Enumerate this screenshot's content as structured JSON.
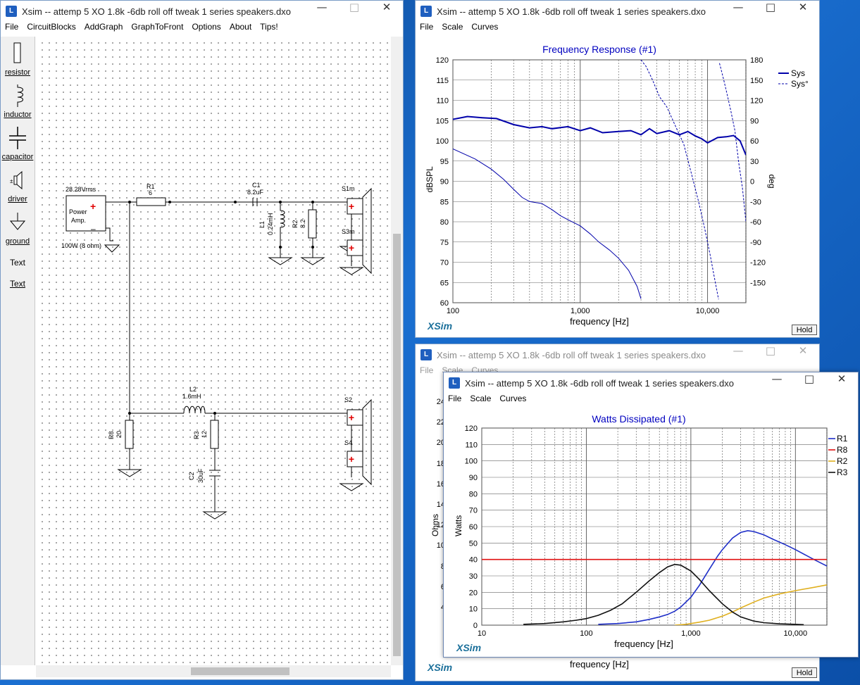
{
  "colors": {
    "accent": "#0000c0",
    "sys": "#0000aa",
    "r1": "#1f2fc8",
    "r8": "#e01010",
    "r2": "#e0b020",
    "r3": "#111111",
    "brand": "#1a6f9a"
  },
  "win1": {
    "title": "Xsim -- attemp 5 XO 1.8k -6db roll off tweak 1 series speakers.dxo",
    "menu": [
      "File",
      "CircuitBlocks",
      "AddGraph",
      "GraphToFront",
      "Options",
      "About",
      "Tips!"
    ],
    "tools": [
      {
        "label": "resistor",
        "icon": "resistor-icon"
      },
      {
        "label": "inductor",
        "icon": "inductor-icon"
      },
      {
        "label": "capacitor",
        "icon": "capacitor-icon"
      },
      {
        "label": "driver",
        "icon": "speaker-icon"
      },
      {
        "label": "ground",
        "icon": "ground-icon"
      },
      {
        "label": "Text",
        "icon": "text-icon"
      },
      {
        "label": "Text",
        "icon": "text-link"
      }
    ],
    "circuit": {
      "source_voltage": "28.28Vrms",
      "source_name1": "Power",
      "source_name2": "Amp.",
      "source_rating": "100W (8 ohm)",
      "r1_name": "R1",
      "r1_value": "6",
      "c1_name": "C1",
      "c1_value": "8.2uF",
      "l1_name": "L1",
      "l1_value": "0.24mH",
      "r2_name": "R2",
      "r2_value": "8.2",
      "s1": "S1m",
      "s3": "S3m",
      "l2_name": "L2",
      "l2_value": "1.6mH",
      "r8_name": "R8",
      "r8_value": "20",
      "r3_name": "R3",
      "r3_value": "12",
      "c2_name": "C2",
      "c2_value": "30uF",
      "s2": "S2",
      "s4": "S4"
    }
  },
  "win2": {
    "title": "Xsim -- attemp 5 XO 1.8k -6db roll off tweak 1 series speakers.dxo",
    "menu": [
      "File",
      "Scale",
      "Curves"
    ],
    "brand": "XSim",
    "hold": "Hold"
  },
  "win3": {
    "title": "Xsim -- attemp 5 XO 1.8k -6db roll off tweak 1 series speakers.dxo",
    "menu": [
      "File",
      "Scale",
      "Curves"
    ],
    "brand": "XSim",
    "hold": "Hold",
    "xlabel": "frequency [Hz]",
    "ylabel": "Ohms",
    "yticks": [
      "24",
      "22",
      "20",
      "18",
      "16",
      "14",
      "12",
      "10",
      "8",
      "6",
      "4"
    ]
  },
  "win4": {
    "title": "Xsim -- attemp 5 XO 1.8k -6db roll off tweak 1 series speakers.dxo",
    "menu": [
      "File",
      "Scale",
      "Curves"
    ],
    "brand": "XSim"
  },
  "chart_data": [
    {
      "type": "line",
      "title": "Frequency Response (#1)",
      "xlabel": "frequency [Hz]",
      "ylabel": "dBSPL",
      "y2label": "deg",
      "xscale": "log",
      "xlim": [
        100,
        20000
      ],
      "ylim": [
        60,
        120
      ],
      "y2lim": [
        -180,
        180
      ],
      "xticks": [
        "100",
        "1,000",
        "10,000"
      ],
      "yticks": [
        "120",
        "115",
        "110",
        "105",
        "100",
        "95",
        "90",
        "85",
        "80",
        "75",
        "70",
        "65",
        "60"
      ],
      "y2ticks": [
        "180",
        "150",
        "120",
        "90",
        "60",
        "30",
        "0",
        "-30",
        "-60",
        "-90",
        "-120",
        "-150"
      ],
      "grid": true,
      "legend": "top-right",
      "series": [
        {
          "name": "Sys",
          "axis": "left",
          "style": "solid",
          "x": [
            100,
            130,
            170,
            220,
            300,
            400,
            500,
            600,
            800,
            1000,
            1200,
            1500,
            2000,
            2500,
            3000,
            3500,
            4000,
            5000,
            6000,
            7000,
            8000,
            9000,
            10000,
            12000,
            14000,
            16000,
            18000,
            20000
          ],
          "y": [
            105.3,
            106,
            105.7,
            105.5,
            104,
            103.2,
            103.5,
            103,
            103.5,
            102.5,
            103.2,
            102,
            102.3,
            102.5,
            101.5,
            103,
            101.8,
            102.5,
            101.5,
            102.3,
            101.2,
            100.5,
            99.5,
            100.8,
            101,
            101.3,
            100,
            96.5
          ]
        },
        {
          "name": "Sys",
          "axis": "left",
          "style": "thin",
          "x": [
            100,
            150,
            200,
            250,
            300,
            350,
            400,
            500,
            600,
            700,
            800,
            1000,
            1200,
            1400,
            1700,
            2000,
            2400,
            2800,
            3000
          ],
          "y": [
            98,
            95.5,
            93,
            90.5,
            88,
            86,
            85,
            84.5,
            83,
            81.5,
            80.5,
            79,
            77,
            75,
            73,
            71,
            68,
            64,
            61
          ]
        },
        {
          "name": "Sys°",
          "axis": "right",
          "style": "dashed",
          "x": [
            3000,
            3300,
            3700,
            4200,
            4800,
            5500,
            6500,
            7500,
            8500,
            9500,
            10500,
            11500,
            12200
          ],
          "y": [
            180,
            170,
            150,
            125,
            110,
            85,
            55,
            10,
            -30,
            -70,
            -110,
            -150,
            -175
          ]
        },
        {
          "name": "Sys°",
          "axis": "right",
          "style": "dashed",
          "x": [
            12400,
            12800,
            13400,
            14200,
            15200,
            16400,
            17500,
            18800,
            20000
          ],
          "y": [
            175,
            165,
            150,
            130,
            105,
            75,
            30,
            -10,
            -60
          ]
        }
      ]
    },
    {
      "type": "line",
      "title": "Watts Dissipated (#1)",
      "xlabel": "frequency [Hz]",
      "ylabel": "Watts",
      "xscale": "log",
      "xlim": [
        10,
        20000
      ],
      "ylim": [
        0,
        120
      ],
      "xticks": [
        "10",
        "100",
        "1,000",
        "10,000"
      ],
      "yticks": [
        "120",
        "110",
        "100",
        "90",
        "80",
        "70",
        "60",
        "50",
        "40",
        "30",
        "20",
        "10",
        "0"
      ],
      "grid": true,
      "legend": "right",
      "series": [
        {
          "name": "R1",
          "color": "#1f2fc8",
          "x": [
            130,
            200,
            300,
            400,
            500,
            600,
            700,
            800,
            1000,
            1200,
            1500,
            1800,
            2000,
            2500,
            3000,
            3500,
            4000,
            5000,
            6000,
            8000,
            10000,
            15000,
            20000
          ],
          "y": [
            0.5,
            1,
            2,
            3.5,
            5,
            6.5,
            8.5,
            11,
            17,
            24,
            34,
            42,
            46,
            53,
            56.5,
            57.5,
            57,
            55,
            52.5,
            49,
            46,
            40,
            36
          ]
        },
        {
          "name": "R8",
          "color": "#e01010",
          "x": [
            10,
            20000
          ],
          "y": [
            40,
            40
          ]
        },
        {
          "name": "R2",
          "color": "#e0b020",
          "x": [
            700,
            900,
            1000,
            1200,
            1500,
            2000,
            2500,
            3000,
            4000,
            5000,
            7000,
            10000,
            15000,
            20000
          ],
          "y": [
            0,
            0.5,
            1,
            1.8,
            3,
            5.5,
            8,
            10.5,
            14,
            16.5,
            19,
            21,
            23,
            24.5
          ]
        },
        {
          "name": "R3",
          "color": "#111111",
          "x": [
            25,
            40,
            60,
            80,
            100,
            130,
            170,
            220,
            300,
            400,
            500,
            600,
            700,
            800,
            1000,
            1200,
            1500,
            2000,
            2500,
            3000,
            4000,
            5000,
            7000,
            10000,
            12000
          ],
          "y": [
            0.5,
            1,
            2,
            3,
            4,
            6,
            9,
            13,
            20,
            27,
            32,
            35.5,
            37,
            36.5,
            33,
            28,
            21,
            13,
            8,
            5,
            2.5,
            1.5,
            0.8,
            0.5,
            0.3
          ]
        }
      ]
    }
  ]
}
